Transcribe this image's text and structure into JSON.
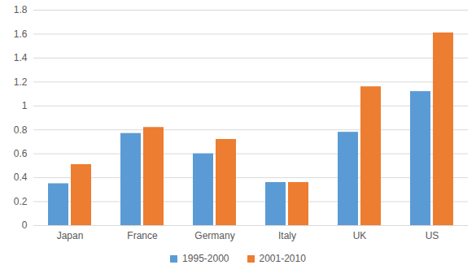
{
  "chart_data": {
    "type": "bar",
    "categories": [
      "Japan",
      "France",
      "Germany",
      "Italy",
      "UK",
      "US"
    ],
    "series": [
      {
        "name": "1995-2000",
        "color": "#5b9bd5",
        "values": [
          0.35,
          0.77,
          0.6,
          0.36,
          0.78,
          1.12
        ]
      },
      {
        "name": "2001-2010",
        "color": "#ed7d31",
        "values": [
          0.51,
          0.82,
          0.72,
          0.36,
          1.16,
          1.61
        ]
      }
    ],
    "ylim": [
      0,
      1.8
    ],
    "yticks": [
      0,
      0.2,
      0.4,
      0.6,
      0.8,
      1,
      1.2,
      1.4,
      1.6,
      1.8
    ],
    "grid": true,
    "legend": "bottom"
  }
}
